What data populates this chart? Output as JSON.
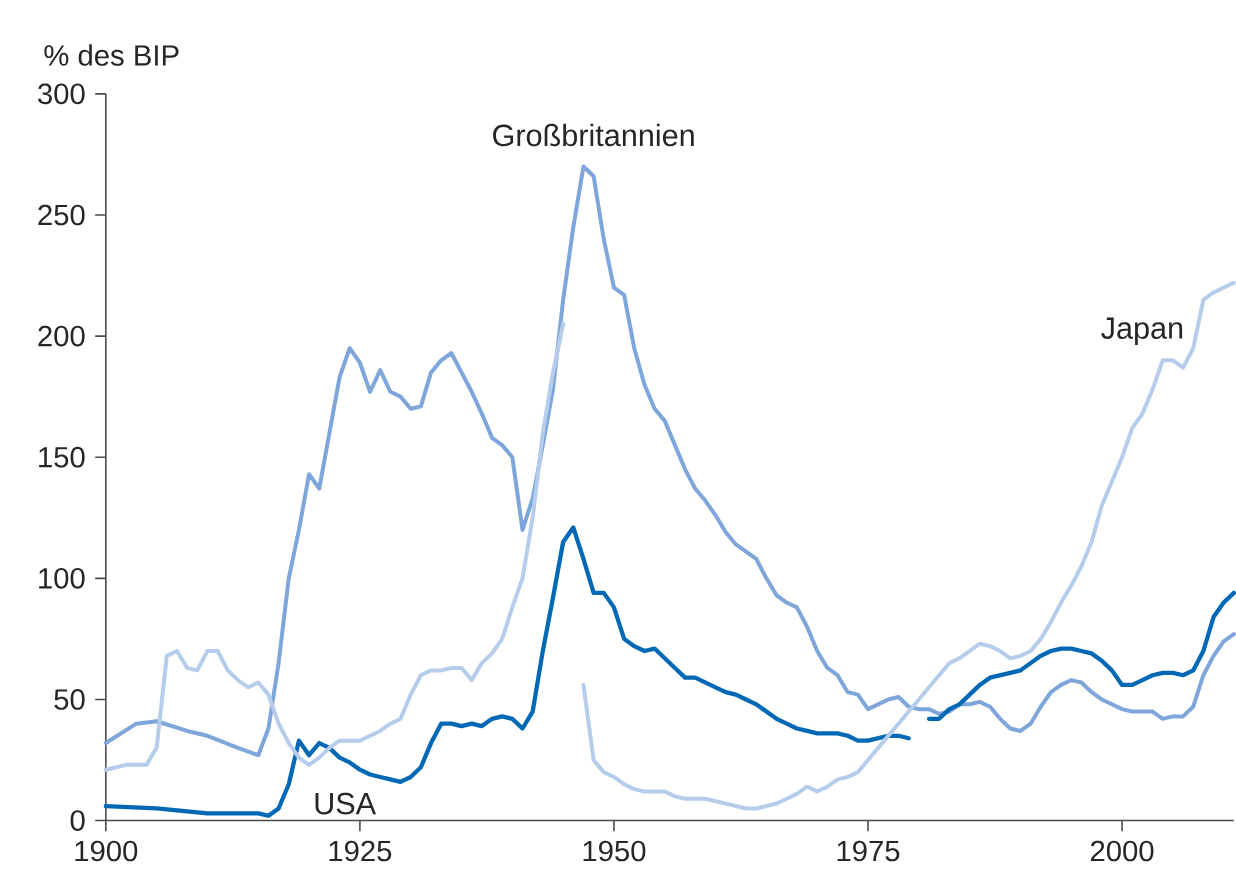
{
  "chart_data": {
    "type": "line",
    "ylabel": "% des BIP",
    "xlim": [
      1900,
      2011
    ],
    "ylim": [
      0,
      300
    ],
    "xticks": [
      1900,
      1925,
      1950,
      1975,
      2000
    ],
    "yticks": [
      0,
      50,
      100,
      150,
      200,
      250,
      300
    ],
    "grid": false,
    "legend": false,
    "series": [
      {
        "name": "Großbritannien",
        "color": "#7fa6da",
        "x": [
          1900,
          1903,
          1905,
          1908,
          1910,
          1913,
          1915,
          1916,
          1917,
          1918,
          1919,
          1920,
          1921,
          1922,
          1923,
          1924,
          1925,
          1926,
          1927,
          1928,
          1929,
          1930,
          1931,
          1932,
          1933,
          1934,
          1935,
          1936,
          1937,
          1938,
          1939,
          1940,
          1941,
          1942,
          1943,
          1944,
          1945,
          1946,
          1947,
          1948,
          1949,
          1950,
          1951,
          1952,
          1953,
          1954,
          1955,
          1956,
          1957,
          1958,
          1959,
          1960,
          1961,
          1962,
          1963,
          1964,
          1965,
          1966,
          1967,
          1968,
          1969,
          1970,
          1971,
          1972,
          1973,
          1974,
          1975,
          1976,
          1977,
          1978,
          1979,
          1980,
          1981,
          1982,
          1983,
          1984,
          1985,
          1986,
          1987,
          1988,
          1989,
          1990,
          1991,
          1992,
          1993,
          1994,
          1995,
          1996,
          1997,
          1998,
          1999,
          2000,
          2001,
          2002,
          2003,
          2004,
          2005,
          2006,
          2007,
          2008,
          2009,
          2010,
          2011
        ],
        "values": [
          32,
          40,
          41,
          37,
          35,
          30,
          27,
          38,
          65,
          100,
          120,
          143,
          137,
          160,
          183,
          195,
          189,
          177,
          186,
          177,
          175,
          170,
          171,
          185,
          190,
          193,
          185,
          177,
          168,
          158,
          155,
          150,
          120,
          133,
          155,
          178,
          215,
          245,
          270,
          266,
          240,
          220,
          217,
          195,
          180,
          170,
          165,
          155,
          145,
          137,
          132,
          126,
          119,
          114,
          111,
          108,
          100,
          93,
          90,
          88,
          80,
          70,
          63,
          60,
          53,
          52,
          46,
          48,
          50,
          51,
          47,
          46,
          46,
          44,
          45,
          48,
          48,
          49,
          47,
          42,
          38,
          37,
          40,
          47,
          53,
          56,
          58,
          57,
          53,
          50,
          48,
          46,
          45,
          45,
          45,
          42,
          43,
          43,
          47,
          60,
          68,
          74,
          77
        ]
      },
      {
        "name": "USA",
        "color": "#0068b4",
        "x": [
          1900,
          1905,
          1910,
          1915,
          1916,
          1917,
          1918,
          1919,
          1920,
          1921,
          1922,
          1923,
          1924,
          1925,
          1926,
          1927,
          1928,
          1929,
          1930,
          1931,
          1932,
          1933,
          1934,
          1935,
          1936,
          1937,
          1938,
          1939,
          1940,
          1941,
          1942,
          1943,
          1944,
          1945,
          1946,
          1947,
          1948,
          1949,
          1950,
          1951,
          1952,
          1953,
          1954,
          1955,
          1956,
          1957,
          1958,
          1959,
          1960,
          1961,
          1962,
          1963,
          1964,
          1965,
          1966,
          1967,
          1968,
          1969,
          1970,
          1971,
          1972,
          1973,
          1974,
          1975,
          1976,
          1977,
          1978,
          1979,
          1980,
          1981,
          1982,
          1983,
          1984,
          1985,
          1986,
          1987,
          1988,
          1989,
          1990,
          1991,
          1992,
          1993,
          1994,
          1995,
          1996,
          1997,
          1998,
          1999,
          2000,
          2001,
          2002,
          2003,
          2004,
          2005,
          2006,
          2007,
          2008,
          2009,
          2010,
          2011
        ],
        "values": [
          6,
          5,
          3,
          3,
          2,
          5,
          15,
          33,
          27,
          32,
          30,
          26,
          24,
          21,
          19,
          18,
          17,
          16,
          18,
          22,
          32,
          40,
          40,
          39,
          40,
          39,
          42,
          43,
          42,
          38,
          45,
          70,
          92,
          115,
          121,
          108,
          94,
          94,
          88,
          75,
          72,
          70,
          71,
          67,
          63,
          59,
          59,
          57,
          55,
          53,
          52,
          50,
          48,
          45,
          42,
          40,
          38,
          37,
          36,
          36,
          36,
          35,
          33,
          33,
          34,
          35,
          35,
          34,
          null,
          42,
          42,
          46,
          48,
          52,
          56,
          59,
          60,
          61,
          62,
          65,
          68,
          70,
          71,
          71,
          70,
          69,
          66,
          62,
          56,
          56,
          58,
          60,
          61,
          61,
          60,
          62,
          70,
          84,
          90,
          94
        ]
      },
      {
        "name": "Japan",
        "color": "#b5cdeb",
        "x": [
          1900,
          1902,
          1904,
          1905,
          1906,
          1907,
          1908,
          1909,
          1910,
          1911,
          1912,
          1913,
          1914,
          1915,
          1916,
          1917,
          1918,
          1919,
          1920,
          1921,
          1922,
          1923,
          1924,
          1925,
          1926,
          1927,
          1928,
          1929,
          1930,
          1931,
          1932,
          1933,
          1934,
          1935,
          1936,
          1937,
          1938,
          1939,
          1940,
          1941,
          1942,
          1943,
          1944,
          1945,
          1946,
          1947,
          1948,
          1949,
          1950,
          1951,
          1952,
          1953,
          1954,
          1955,
          1956,
          1957,
          1958,
          1959,
          1960,
          1961,
          1962,
          1963,
          1964,
          1965,
          1966,
          1967,
          1968,
          1969,
          1970,
          1971,
          1972,
          1973,
          1974,
          1975,
          1976,
          1977,
          1978,
          1979,
          1980,
          1981,
          1982,
          1983,
          1984,
          1985,
          1986,
          1987,
          1988,
          1989,
          1990,
          1991,
          1992,
          1993,
          1994,
          1995,
          1996,
          1997,
          1998,
          1999,
          2000,
          2001,
          2002,
          2003,
          2004,
          2005,
          2006,
          2007,
          2008,
          2009,
          2010,
          2011
        ],
        "values": [
          21,
          23,
          23,
          30,
          68,
          70,
          63,
          62,
          70,
          70,
          62,
          58,
          55,
          57,
          52,
          40,
          32,
          26,
          23,
          26,
          30,
          33,
          33,
          33,
          35,
          37,
          40,
          42,
          52,
          60,
          62,
          62,
          63,
          63,
          58,
          65,
          69,
          75,
          88,
          100,
          125,
          160,
          185,
          205,
          null,
          56,
          25,
          20,
          18,
          15,
          13,
          12,
          12,
          12,
          10,
          9,
          9,
          9,
          8,
          7,
          6,
          5,
          5,
          6,
          7,
          9,
          11,
          14,
          12,
          14,
          17,
          18,
          20,
          25,
          30,
          35,
          40,
          45,
          50,
          55,
          60,
          65,
          67,
          70,
          73,
          72,
          70,
          67,
          68,
          70,
          75,
          82,
          90,
          97,
          105,
          115,
          130,
          140,
          150,
          162,
          168,
          178,
          190,
          190,
          187,
          195,
          215,
          218,
          220,
          222
        ]
      }
    ]
  }
}
